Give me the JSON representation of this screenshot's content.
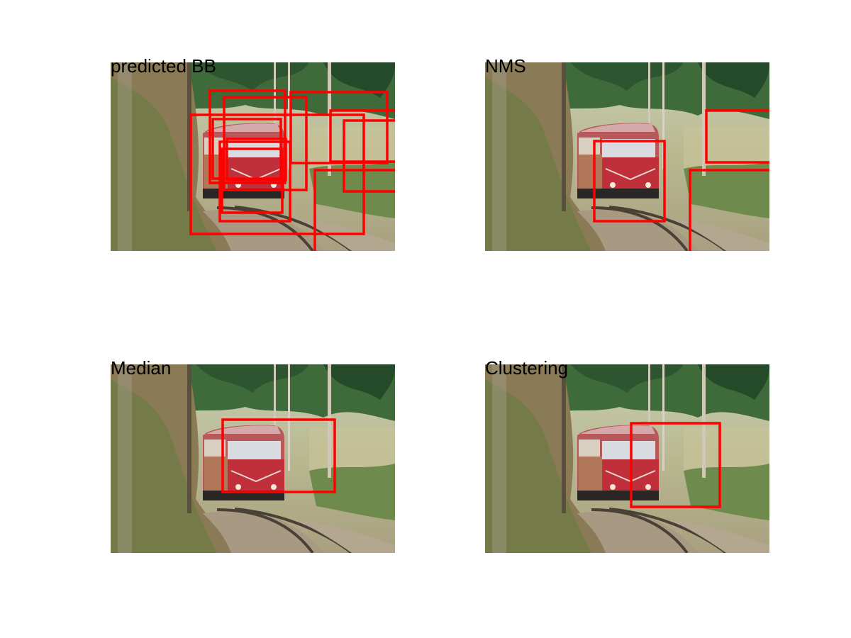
{
  "panels": [
    {
      "title": "predicted BB"
    },
    {
      "title": "NMS"
    },
    {
      "title": "Median"
    },
    {
      "title": "Clustering"
    }
  ]
}
